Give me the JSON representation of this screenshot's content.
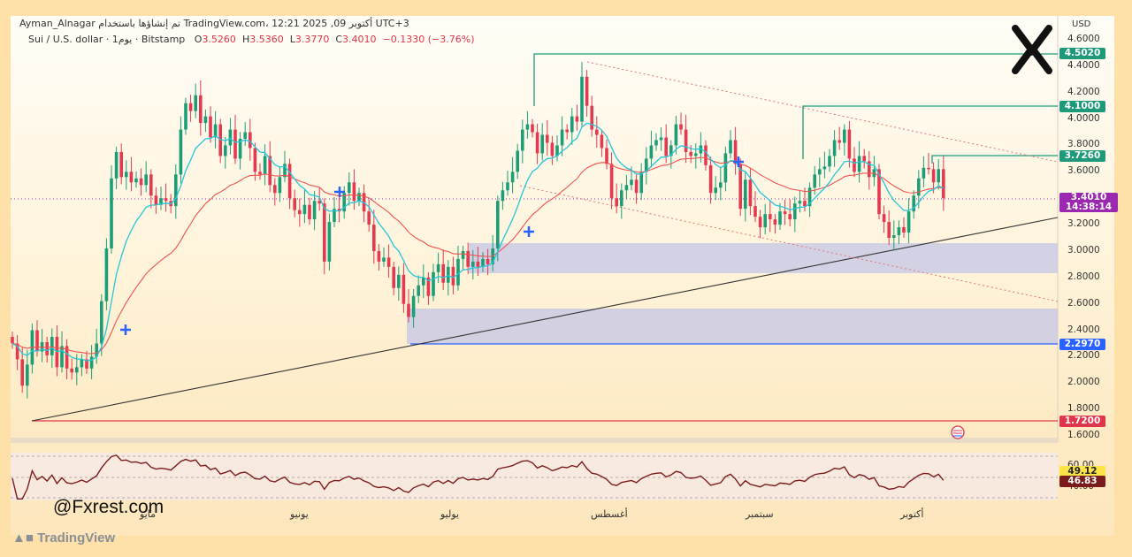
{
  "header": {
    "author_line": "Ayman_Alnagar تم إنشاؤها باستخدام TradingView.com، 12:21 2025 ,09 أكتوبر UTC+3",
    "symbol_line": "Sui / U.S. dollar · 1يوم · Bitstamp",
    "o_label": "O",
    "o_value": "3.5260",
    "h_label": "H",
    "h_value": "3.5360",
    "l_label": "L",
    "l_value": "3.3770",
    "c_label": "C",
    "c_value": "3.4010",
    "change": "−0.1330 (−3.76%)"
  },
  "axis": {
    "currency": "USD",
    "ticks": [
      "4.6000",
      "4.4000",
      "4.2000",
      "4.0000",
      "3.8000",
      "3.6000",
      "3.4000",
      "3.2000",
      "3.0000",
      "2.8000",
      "2.6000",
      "2.4000",
      "2.2000",
      "2.0000",
      "1.8000",
      "1.6000"
    ],
    "months": [
      "مايو",
      "يونيو",
      "يوليو",
      "أغسطس",
      "سبتمبر",
      "أكتوبر"
    ]
  },
  "price_labels": {
    "level_450": "4.5020",
    "level_410": "4.1000",
    "level_373": "3.7260",
    "current": "3.4010",
    "countdown": "14:38:14",
    "level_230": "2.2970",
    "level_172": "1.7200"
  },
  "rsi": {
    "tick_60": "60.00",
    "tick_40": "40.00",
    "value_signal": "49.12",
    "value_rsi": "46.83"
  },
  "branding": {
    "handle": "@Fxrest.com",
    "footer": "TradingView"
  },
  "colors": {
    "green_level": "#1e9a7a",
    "current_box": "#9c27b0",
    "support_blue": "#2962ff",
    "red_level": "#e0354a",
    "candle_up": "#1b9e77",
    "candle_down": "#e53950",
    "ma_fast": "#26c6da",
    "ma_slow": "#ef5350",
    "rsi_line": "#7b1c1c",
    "zone_fill": "#c8c8e6"
  },
  "chart_data": {
    "type": "candlestick",
    "title": "Sui / U.S. dollar · 1يوم · Bitstamp",
    "ylim": [
      1.6,
      4.7
    ],
    "y_scale": "linear",
    "grid": false,
    "levels": [
      4.502,
      4.1,
      3.726,
      2.297,
      1.72
    ],
    "zones": [
      [
        2.84,
        3.06
      ],
      [
        2.27,
        2.56
      ]
    ],
    "close_path": [
      2.3,
      2.18,
      1.98,
      2.14,
      2.4,
      2.24,
      2.31,
      2.21,
      2.35,
      2.12,
      2.28,
      2.11,
      2.08,
      2.12,
      2.18,
      2.11,
      2.2,
      2.3,
      2.62,
      3.02,
      3.55,
      3.75,
      3.56,
      3.6,
      3.52,
      3.55,
      3.5,
      3.58,
      3.42,
      3.35,
      3.4,
      3.38,
      3.34,
      3.58,
      3.92,
      4.12,
      4.06,
      4.18,
      3.97,
      4.02,
      3.86,
      3.96,
      3.72,
      3.8,
      3.92,
      3.7,
      3.85,
      3.9,
      3.78,
      3.6,
      3.58,
      3.72,
      3.5,
      3.44,
      3.56,
      3.66,
      3.4,
      3.31,
      3.28,
      3.35,
      3.24,
      3.38,
      3.36,
      2.92,
      3.22,
      3.32,
      3.3,
      3.44,
      3.52,
      3.38,
      3.44,
      3.3,
      3.2,
      3.0,
      2.92,
      2.95,
      2.88,
      2.72,
      2.82,
      2.6,
      2.5,
      2.66,
      2.74,
      2.8,
      2.66,
      2.84,
      2.9,
      2.76,
      2.88,
      2.74,
      2.94,
      3.0,
      2.88,
      2.92,
      2.88,
      2.94,
      2.9,
      3.02,
      3.38,
      3.46,
      3.52,
      3.6,
      3.76,
      3.92,
      3.96,
      3.9,
      3.74,
      3.88,
      3.82,
      3.72,
      3.8,
      3.92,
      3.9,
      4.02,
      3.98,
      4.32,
      4.1,
      3.92,
      3.88,
      3.78,
      3.66,
      3.4,
      3.34,
      3.46,
      3.5,
      3.54,
      3.44,
      3.6,
      3.7,
      3.8,
      3.84,
      3.86,
      3.72,
      3.8,
      3.96,
      3.92,
      3.75,
      3.72,
      3.74,
      3.8,
      3.65,
      3.44,
      3.48,
      3.52,
      3.74,
      3.84,
      3.66,
      3.32,
      3.54,
      3.34,
      3.26,
      3.18,
      3.28,
      3.24,
      3.2,
      3.3,
      3.28,
      3.24,
      3.36,
      3.38,
      3.34,
      3.48,
      3.58,
      3.62,
      3.64,
      3.72,
      3.84,
      3.82,
      3.92,
      3.7,
      3.6,
      3.72,
      3.68,
      3.56,
      3.62,
      3.28,
      3.22,
      3.1,
      3.12,
      3.18,
      3.14,
      3.3,
      3.42,
      3.55,
      3.63,
      3.62,
      3.52,
      3.62,
      3.4
    ],
    "series": [
      {
        "name": "",
        "type": "ma_fast",
        "period": 20
      },
      {
        "name": "",
        "type": "ma_slow",
        "period": 50
      }
    ],
    "rsi": {
      "ylim": [
        20,
        85
      ],
      "latest_rsi": 46.83,
      "latest_signal": 49.12
    }
  }
}
